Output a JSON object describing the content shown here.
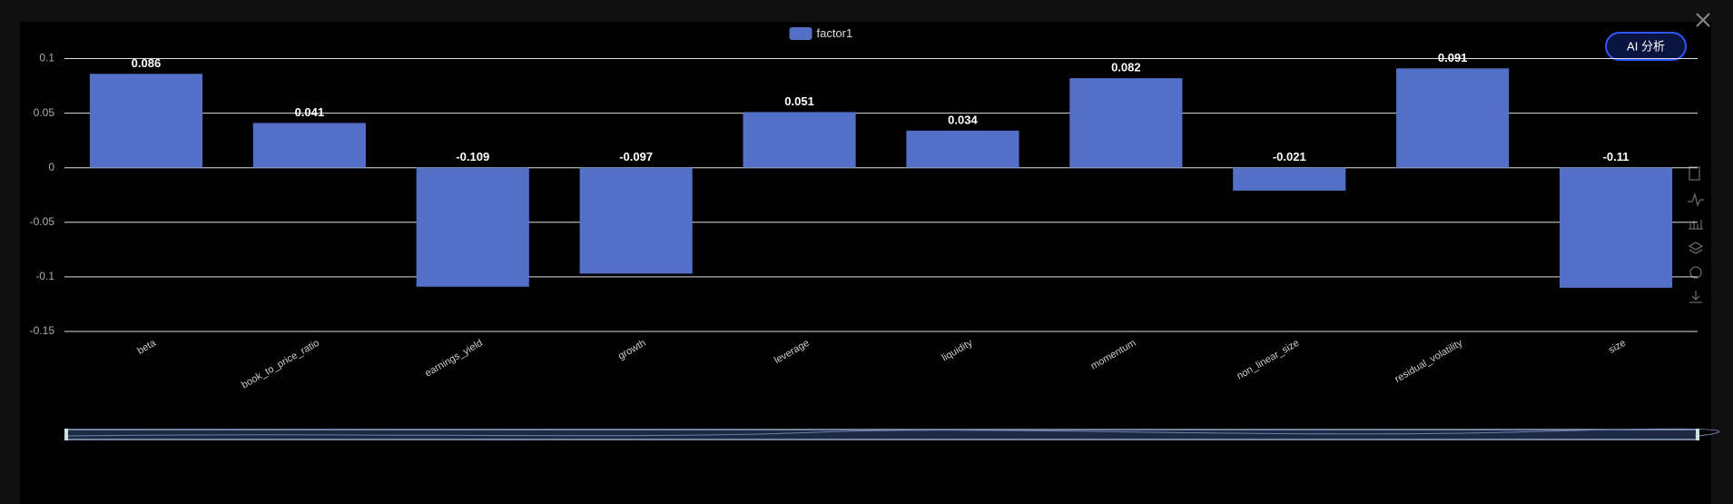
{
  "chart_data": {
    "type": "bar",
    "categories": [
      "beta",
      "book_to_price_ratio",
      "earnings_yield",
      "growth",
      "leverage",
      "liquidity",
      "momentum",
      "non_linear_size",
      "residual_volatility",
      "size"
    ],
    "series": [
      {
        "name": "factor1",
        "color": "#5470c6",
        "values": [
          0.086,
          0.041,
          -0.109,
          -0.097,
          0.051,
          0.034,
          0.082,
          -0.021,
          0.091,
          -0.11
        ]
      }
    ],
    "ylim": [
      -0.15,
      0.1
    ],
    "yticks": [
      0.1,
      0.05,
      0,
      -0.05,
      -0.1,
      -0.15
    ],
    "grid": true,
    "legend": "top"
  },
  "ai_button": "AI 分析"
}
